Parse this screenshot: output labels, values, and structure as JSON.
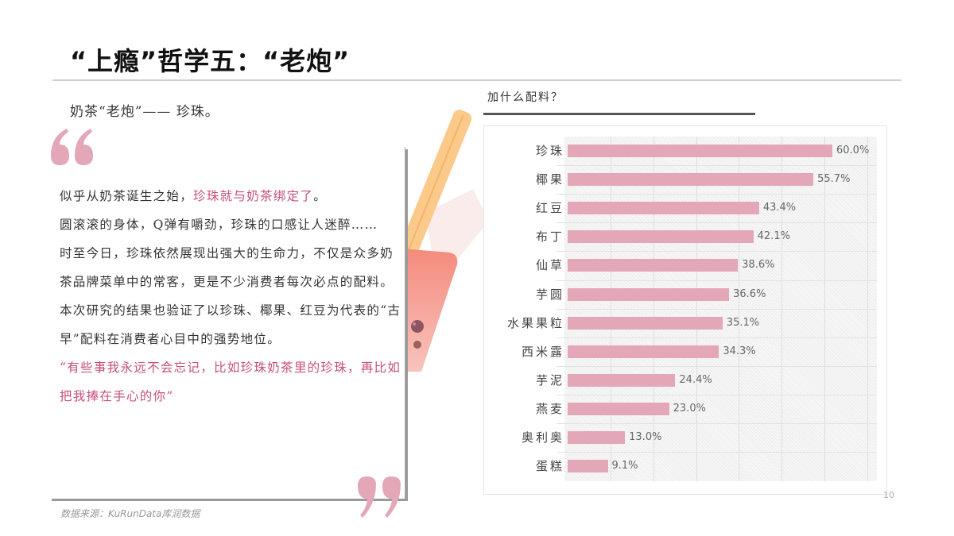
{
  "header": {
    "title": "“上瘾”哲学五：“老炮”"
  },
  "intro": {
    "subtitle": "奶茶“老炮”—— 珍珠。"
  },
  "card": {
    "p1_normal": "似乎从奶茶诞生之始，",
    "p1_pink": "珍珠就与奶茶绑定了",
    "p1_end": "。",
    "p2": "圆滚滚的身体，Q弹有嚼劲，珍珠的口感让人迷醉……",
    "p3": "时至今日，珍珠依然展现出强大的生命力，不仅是众多奶茶品牌菜单中的常客，更是不少消费者每次必点的配料。",
    "p4": "本次研究的结果也验证了以珍珠、椰果、红豆为代表的“古早”配料在消费者心目中的强势地位。",
    "p5_pink": "“有些事我永远不会忘记，比如珍珠奶茶里的珍珠，再比如把我捧在手心的你”"
  },
  "footer": {
    "source": "数据来源：KuRunData库润数据",
    "page_number": "10"
  },
  "colors": {
    "accent_pink": "#c84f7a",
    "bar_pink": "#e3a7b7",
    "quote_pink": "#e3a7b7"
  },
  "chart": {
    "heading": "加什么配料？",
    "rows": [
      {
        "label": "珍珠",
        "value": 60.0,
        "display": "60.0%"
      },
      {
        "label": "椰果",
        "value": 55.7,
        "display": "55.7%"
      },
      {
        "label": "红豆",
        "value": 43.4,
        "display": "43.4%"
      },
      {
        "label": "布丁",
        "value": 42.1,
        "display": "42.1%"
      },
      {
        "label": "仙草",
        "value": 38.6,
        "display": "38.6%"
      },
      {
        "label": "芋圆",
        "value": 36.6,
        "display": "36.6%"
      },
      {
        "label": "水果果粒",
        "value": 35.1,
        "display": "35.1%"
      },
      {
        "label": "西米露",
        "value": 34.3,
        "display": "34.3%"
      },
      {
        "label": "芋泥",
        "value": 24.4,
        "display": "24.4%"
      },
      {
        "label": "燕麦",
        "value": 23.0,
        "display": "23.0%"
      },
      {
        "label": "奥利奥",
        "value": 13.0,
        "display": "13.0%"
      },
      {
        "label": "蛋糕",
        "value": 9.1,
        "display": "9.1%"
      }
    ]
  },
  "chart_data": {
    "type": "bar",
    "orientation": "horizontal",
    "title": "加什么配料？",
    "categories": [
      "珍珠",
      "椰果",
      "红豆",
      "布丁",
      "仙草",
      "芋圆",
      "水果果粒",
      "西米露",
      "芋泥",
      "燕麦",
      "奥利奥",
      "蛋糕"
    ],
    "values": [
      60.0,
      55.7,
      43.4,
      42.1,
      38.6,
      36.6,
      35.1,
      34.3,
      24.4,
      23.0,
      13.0,
      9.1
    ],
    "value_labels": [
      "60.0%",
      "55.7%",
      "43.4%",
      "42.1%",
      "38.6%",
      "36.6%",
      "35.1%",
      "34.3%",
      "24.4%",
      "23.0%",
      "13.0%",
      "9.1%"
    ],
    "xlabel": "",
    "ylabel": "",
    "xlim": [
      0,
      70
    ],
    "grid": true,
    "legend": null,
    "unit": "%",
    "bar_color": "#e3a7b7"
  }
}
